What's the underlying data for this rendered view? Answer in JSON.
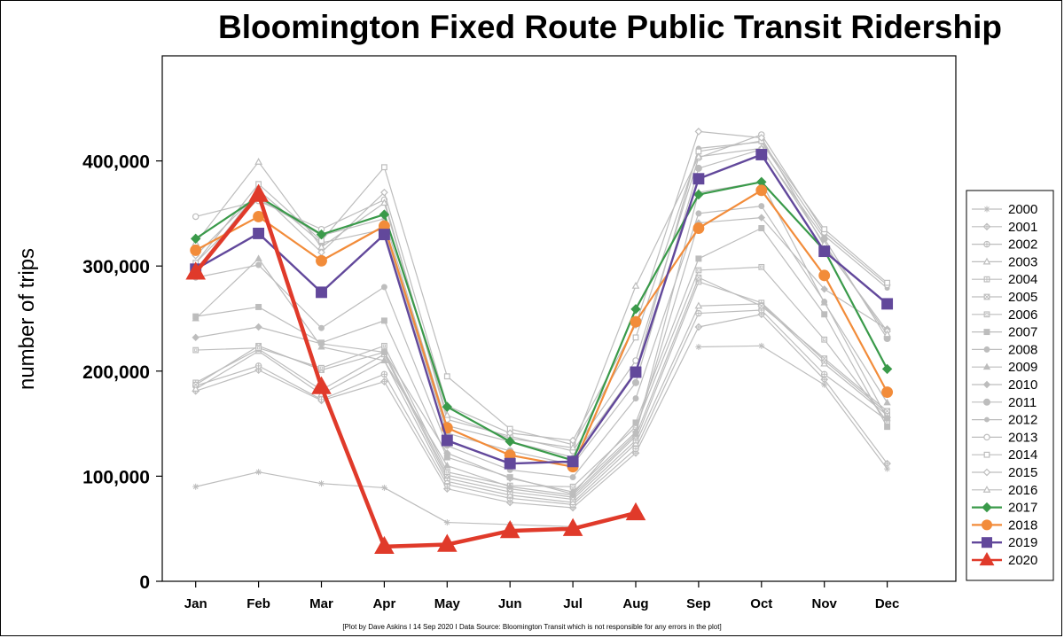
{
  "chart_data": {
    "type": "line",
    "title": "Bloomington Fixed Route Public Transit Ridership",
    "ylabel": "number of trips",
    "xlabel": "",
    "footnote": "[Plot by Dave Askins I 14 Sep 2020 I Data Source: Bloomington Transit which is not responsible for any errors in the plot]",
    "categories": [
      "Jan",
      "Feb",
      "Mar",
      "Apr",
      "May",
      "Jun",
      "Jul",
      "Aug",
      "Sep",
      "Oct",
      "Nov",
      "Dec"
    ],
    "ylim": [
      0,
      500000
    ],
    "yticks": [
      0,
      100000,
      200000,
      300000,
      400000
    ],
    "ytick_labels": [
      "0",
      "100,000",
      "200,000",
      "300,000",
      "400,000"
    ],
    "grid": false,
    "legend_position": "right",
    "colors": {
      "background_series": "#bdbdbd",
      "s2017": "#3a9a4a",
      "s2018": "#f28c3a",
      "s2019": "#62489b",
      "s2020": "#e03a2a"
    },
    "series": [
      {
        "name": "2000",
        "marker": "asterisk",
        "values": [
          90000,
          104000,
          93000,
          89000,
          56000,
          54000,
          52000,
          null,
          223000,
          224000,
          187000,
          107000
        ]
      },
      {
        "name": "2001",
        "marker": "diamond-plus",
        "values": [
          181000,
          201000,
          172000,
          190000,
          88000,
          75000,
          70000,
          122000,
          242000,
          254000,
          192000,
          112000
        ]
      },
      {
        "name": "2002",
        "marker": "circle-plus",
        "values": [
          186000,
          205000,
          173000,
          197000,
          92000,
          79000,
          73000,
          126000,
          255000,
          258000,
          197000,
          153000
        ]
      },
      {
        "name": "2003",
        "marker": "triangle-star",
        "values": [
          183000,
          219000,
          178000,
          210000,
          95000,
          82000,
          75000,
          131000,
          262000,
          264000,
          207000,
          158000
        ]
      },
      {
        "name": "2004",
        "marker": "square-plus",
        "values": [
          189000,
          221000,
          182000,
          216000,
          98000,
          85000,
          78000,
          134000,
          285000,
          265000,
          210000,
          160000
        ]
      },
      {
        "name": "2005",
        "marker": "square-x",
        "values": [
          187000,
          224000,
          201000,
          218000,
          101000,
          88000,
          80000,
          138000,
          289000,
          262000,
          212000,
          162000
        ]
      },
      {
        "name": "2006",
        "marker": "square-box",
        "values": [
          220000,
          222000,
          203000,
          224000,
          104000,
          91000,
          90000,
          147000,
          296000,
          299000,
          230000,
          152000
        ]
      },
      {
        "name": "2007",
        "marker": "square-filled",
        "values": [
          252000,
          261000,
          227000,
          248000,
          118000,
          99000,
          83000,
          151000,
          307000,
          336000,
          254000,
          147000
        ]
      },
      {
        "name": "2008",
        "marker": "circle-filled",
        "values": [
          289000,
          301000,
          241000,
          280000,
          129000,
          106000,
          99000,
          174000,
          350000,
          357000,
          266000,
          155000
        ]
      },
      {
        "name": "2009",
        "marker": "triangle-filled",
        "values": [
          250000,
          307000,
          223000,
          210000,
          110000,
          90000,
          82000,
          140000,
          370000,
          380000,
          265000,
          170000
        ]
      },
      {
        "name": "2010",
        "marker": "diamond-filled",
        "values": [
          232000,
          242000,
          226000,
          218000,
          122000,
          98000,
          85000,
          142000,
          341000,
          346000,
          278000,
          240000
        ]
      },
      {
        "name": "2011",
        "marker": "circle-big",
        "values": [
          296000,
          372000,
          322000,
          335000,
          141000,
          124000,
          111000,
          189000,
          393000,
          411000,
          326000,
          231000
        ]
      },
      {
        "name": "2012",
        "marker": "circle-small",
        "values": [
          303000,
          364000,
          329000,
          345000,
          148000,
          133000,
          118000,
          200000,
          412000,
          418000,
          329000,
          279000
        ]
      },
      {
        "name": "2013",
        "marker": "circle-open",
        "values": [
          347000,
          362000,
          335000,
          363000,
          154000,
          138000,
          124000,
          210000,
          403000,
          425000,
          332000,
          282000
        ]
      },
      {
        "name": "2014",
        "marker": "square-open",
        "values": [
          303000,
          378000,
          324000,
          394000,
          195000,
          145000,
          130000,
          232000,
          409000,
          419000,
          335000,
          284000
        ]
      },
      {
        "name": "2015",
        "marker": "diamond-open",
        "values": [
          310000,
          370000,
          313000,
          370000,
          167000,
          141000,
          134000,
          244000,
          428000,
          422000,
          319000,
          238000
        ]
      },
      {
        "name": "2016",
        "marker": "triangle-open",
        "values": [
          322000,
          399000,
          318000,
          360000,
          158000,
          136000,
          127000,
          281000,
          404000,
          412000,
          321000,
          235000
        ]
      },
      {
        "name": "2017",
        "marker": "diamond-filled",
        "values": [
          326000,
          366000,
          330000,
          349000,
          166000,
          133000,
          115000,
          259000,
          368000,
          380000,
          315000,
          202000
        ]
      },
      {
        "name": "2018",
        "marker": "circle-filled",
        "values": [
          315000,
          347000,
          305000,
          338000,
          146000,
          120000,
          109000,
          247000,
          336000,
          372000,
          291000,
          180000
        ]
      },
      {
        "name": "2019",
        "marker": "square-filled",
        "values": [
          297000,
          331000,
          275000,
          330000,
          134000,
          112000,
          114000,
          199000,
          383000,
          406000,
          314000,
          264000
        ]
      },
      {
        "name": "2020",
        "marker": "triangle-filled",
        "values": [
          294000,
          368000,
          185000,
          33000,
          35000,
          48000,
          50000,
          65000,
          null,
          null,
          null,
          null
        ]
      }
    ]
  }
}
